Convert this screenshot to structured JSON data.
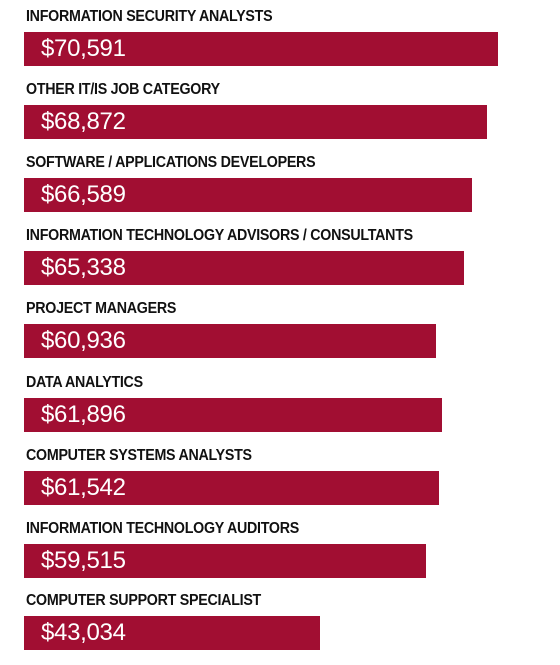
{
  "chart_data": {
    "type": "bar",
    "orientation": "horizontal",
    "categories": [
      "INFORMATION SECURITY ANALYSTS",
      "OTHER IT/IS JOB CATEGORY",
      "SOFTWARE / APPLICATIONS DEVELOPERS",
      "INFORMATION TECHNOLOGY ADVISORS / CONSULTANTS",
      "PROJECT MANAGERS",
      "DATA ANALYTICS",
      "COMPUTER SYSTEMS ANALYSTS",
      "INFORMATION TECHNOLOGY AUDITORS",
      "COMPUTER SUPPORT SPECIALIST"
    ],
    "values": [
      70591,
      68872,
      66589,
      65338,
      60936,
      61896,
      61542,
      59515,
      43034
    ],
    "value_labels": [
      "$70,591",
      "$68,872",
      "$66,589",
      "$65,338",
      "$60,936",
      "$61,896",
      "$61,542",
      "$59,515",
      "$43,034"
    ],
    "title": "",
    "xlabel": "",
    "ylabel": "",
    "grid": false,
    "legend": false,
    "bar_color": "#a10e32",
    "label_color": "#111111",
    "value_text_color": "#ffffff"
  }
}
